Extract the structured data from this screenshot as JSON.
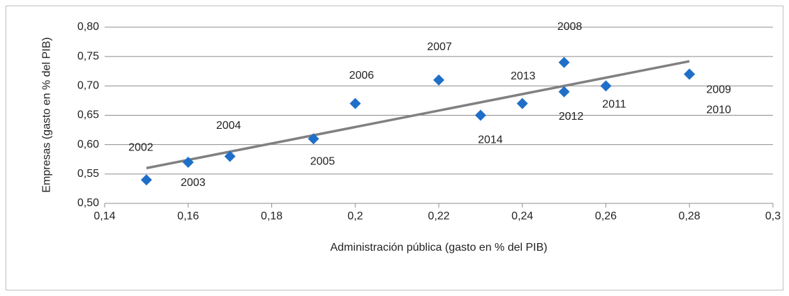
{
  "chart_data": {
    "type": "scatter",
    "x_label": "Administración pública (gasto en % del PIB)",
    "y_label": "Empresas (gasto en % del PIB)",
    "point_labels": [
      "2002",
      "2003",
      "2004",
      "2005",
      "2006",
      "2007",
      "2014",
      "2013",
      "2008",
      "2012",
      "2011",
      "2009",
      "2010"
    ],
    "x": [
      0.15,
      0.16,
      0.17,
      0.19,
      0.2,
      0.22,
      0.23,
      0.24,
      0.25,
      0.25,
      0.26,
      0.28,
      0.28
    ],
    "y": [
      0.54,
      0.57,
      0.58,
      0.61,
      0.67,
      0.71,
      0.65,
      0.67,
      0.74,
      0.69,
      0.7,
      0.72,
      0.72
    ],
    "color": "#1f6fc9",
    "trendline": {
      "color": "#808080",
      "x": [
        0.15,
        0.28
      ],
      "y": [
        0.56,
        0.742
      ]
    },
    "xlim": [
      0.14,
      0.3
    ],
    "xticks": [
      {
        "value": 0.14,
        "label": "0,14"
      },
      {
        "value": 0.16,
        "label": "0,16"
      },
      {
        "value": 0.18,
        "label": "0,18"
      },
      {
        "value": 0.2,
        "label": "0,2"
      },
      {
        "value": 0.22,
        "label": "0,22"
      },
      {
        "value": 0.24,
        "label": "0,24"
      },
      {
        "value": 0.26,
        "label": "0,26"
      },
      {
        "value": 0.28,
        "label": "0,28"
      },
      {
        "value": 0.3,
        "label": "0,3"
      }
    ],
    "ylim": [
      0.5,
      0.8
    ],
    "yticks": [
      {
        "value": 0.5,
        "label": "0,50"
      },
      {
        "value": 0.55,
        "label": "0,55"
      },
      {
        "value": 0.6,
        "label": "0,60"
      },
      {
        "value": 0.65,
        "label": "0,65"
      },
      {
        "value": 0.7,
        "label": "0,70"
      },
      {
        "value": 0.75,
        "label": "0,75"
      },
      {
        "value": 0.8,
        "label": "0,80"
      }
    ],
    "grid": true
  }
}
